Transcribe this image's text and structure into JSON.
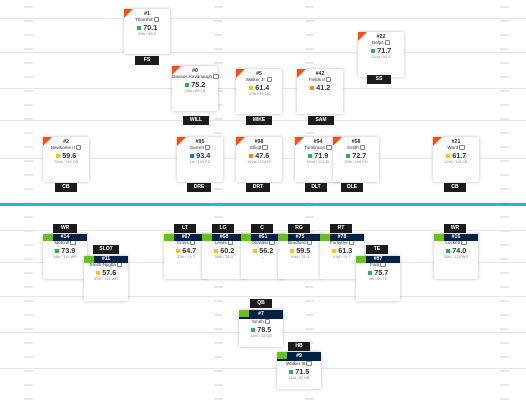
{
  "colors": {
    "line_of_scrimmage": "#1fb8e3",
    "grade_green": "#2db34a",
    "grade_yellow": "#f5c518",
    "grade_orange": "#f08a24",
    "grade_blue": "#2f6fb3",
    "defense_accent": "#fb4f14",
    "offense_accent": "#69be28",
    "offense_header": "#002244"
  },
  "icon": "comment-icon",
  "defense": [
    {
      "number": "#1",
      "name": "Thornhill",
      "grade": "70.1",
      "grade_color": "green",
      "sub": "29th / 85 S",
      "pos": "FS"
    },
    {
      "number": "#22",
      "name": "Delpit",
      "grade": "71.7",
      "grade_color": "green",
      "sub": "22nd / 85 S",
      "pos": "SS"
    },
    {
      "number": "#0",
      "name": "Davaus Kavanaugh",
      "grade": "75.2",
      "grade_color": "green",
      "sub": "24th / 83 LB",
      "pos": "WILL"
    },
    {
      "number": "#5",
      "name": "Walker Jr.",
      "grade": "61.4",
      "grade_color": "yellow",
      "sub": "37th / 83 LB",
      "pos": "MIKE"
    },
    {
      "number": "#42",
      "name": "Fields II",
      "grade": "41.2",
      "grade_color": "orange",
      "sub": "–",
      "pos": "SAM"
    },
    {
      "number": "#2",
      "name": "Newsome II",
      "grade": "59.6",
      "grade_color": "yellow",
      "sub": "72nd / 115 CB",
      "pos": "CB"
    },
    {
      "number": "#95",
      "name": "Garrett",
      "grade": "93.4",
      "grade_color": "blue",
      "sub": "1st / 109 ED",
      "pos": "DRE"
    },
    {
      "number": "#98",
      "name": "Elliott",
      "grade": "47.6",
      "grade_color": "orange",
      "sub": "101st / 124 DI",
      "pos": "DRT"
    },
    {
      "number": "#94",
      "name": "Tomlinson",
      "grade": "71.9",
      "grade_color": "green",
      "sub": "22nd / 124 DI",
      "pos": "DLT"
    },
    {
      "number": "#58",
      "name": "Smith",
      "grade": "72.7",
      "grade_color": "green",
      "sub": "30th / 109 ED",
      "pos": "DLE"
    },
    {
      "number": "#21",
      "name": "Ward",
      "grade": "61.7",
      "grade_color": "yellow",
      "sub": "67th / 115 CB",
      "pos": "CB"
    }
  ],
  "offense": [
    {
      "number": "#14",
      "name": "Metcalf",
      "grade": "73.9",
      "grade_color": "green",
      "sub": "34th / 115 WR",
      "pos": "WR"
    },
    {
      "number": "#11",
      "name": "Smith-Njigba",
      "grade": "57.6",
      "grade_color": "yellow",
      "sub": "97th / 115 WR",
      "pos": "SLOT"
    },
    {
      "number": "#67",
      "name": "Cross",
      "grade": "64.7",
      "grade_color": "yellow",
      "sub": "37th / 74 T",
      "pos": "LT"
    },
    {
      "number": "#68",
      "name": "Lewis",
      "grade": "60.2",
      "grade_color": "yellow",
      "sub": "36th / 78 G",
      "pos": "LG"
    },
    {
      "number": "#61",
      "name": "Olowalu",
      "grade": "56.2",
      "grade_color": "yellow",
      "sub": "–",
      "pos": "C"
    },
    {
      "number": "#75",
      "name": "Bradford",
      "grade": "59.5",
      "grade_color": "yellow",
      "sub": "41st / 78 G",
      "pos": "RG"
    },
    {
      "number": "#78",
      "name": "Forsythe",
      "grade": "61.3",
      "grade_color": "yellow",
      "sub": "41st / 74 T",
      "pos": "RT"
    },
    {
      "number": "#87",
      "name": "Fant",
      "grade": "75.7",
      "grade_color": "green",
      "sub": "4th / 69 TE",
      "pos": "TE"
    },
    {
      "number": "#16",
      "name": "Lockett",
      "grade": "74.0",
      "grade_color": "green",
      "sub": "33rd / 115 WR",
      "pos": "WR"
    },
    {
      "number": "#7",
      "name": "Smith",
      "grade": "78.5",
      "grade_color": "green",
      "sub": "12th / 33 QB",
      "pos": "QB"
    },
    {
      "number": "#9",
      "name": "Walker III",
      "grade": "71.5",
      "grade_color": "green",
      "sub": "14th / 50 HB",
      "pos": "HB"
    }
  ]
}
